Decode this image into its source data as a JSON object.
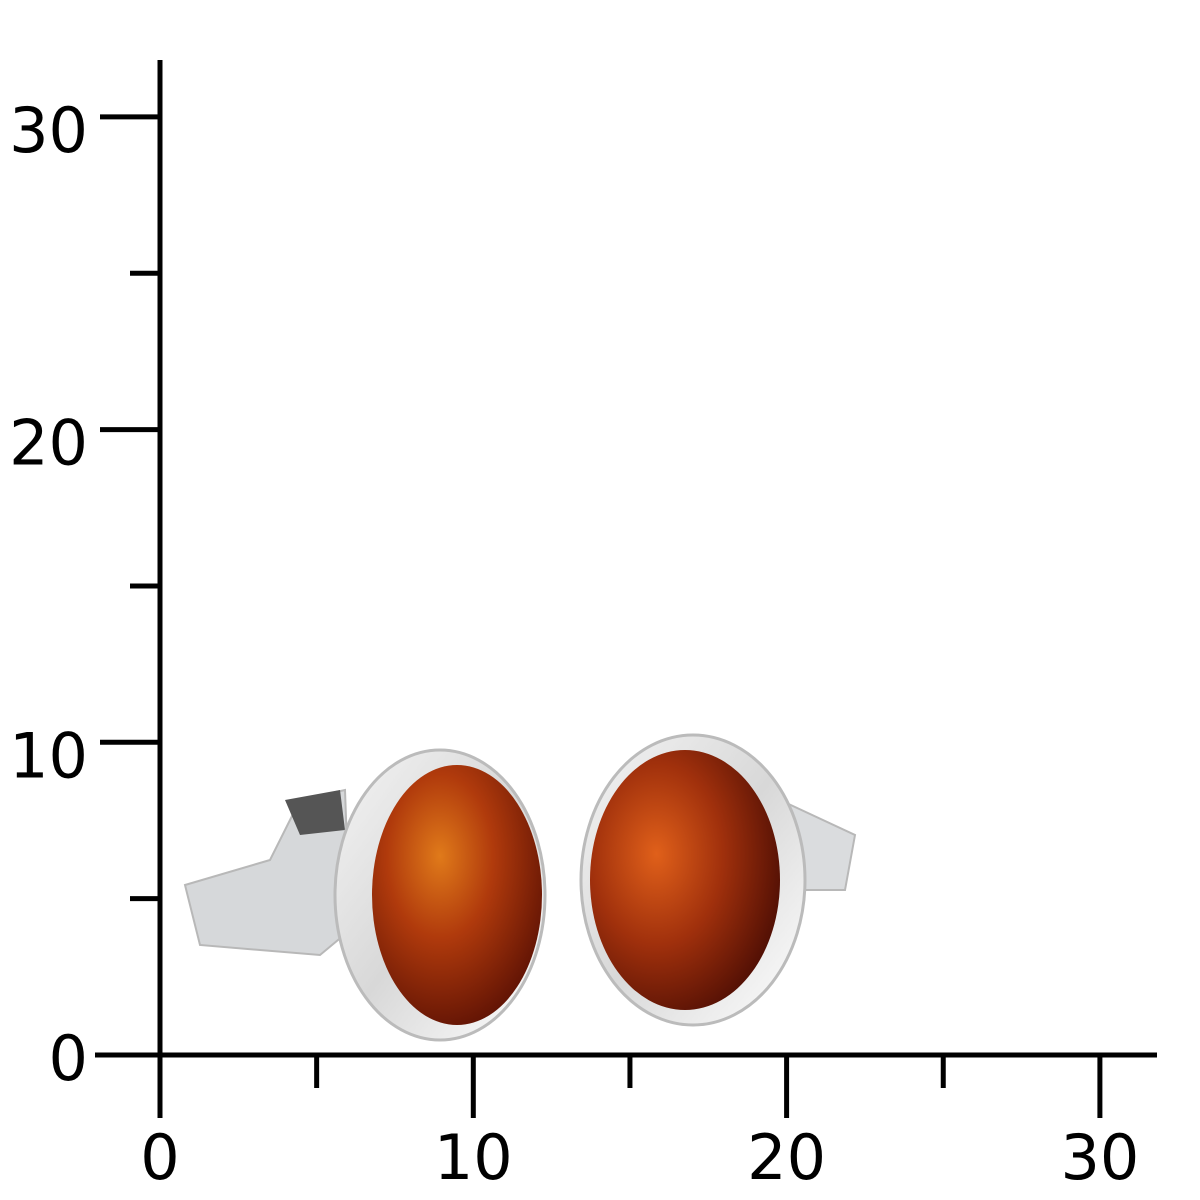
{
  "scale": {
    "x_ticks": [
      0,
      10,
      20,
      30
    ],
    "x_minor_ticks": [
      5,
      15,
      25
    ],
    "y_ticks": [
      0,
      10,
      20,
      30
    ],
    "y_minor_ticks": [
      5,
      15,
      25
    ]
  }
}
